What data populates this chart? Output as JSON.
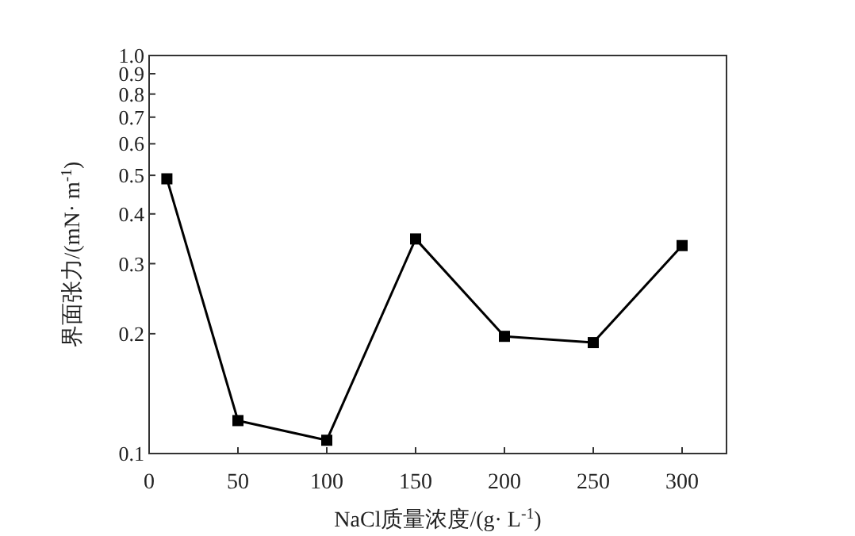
{
  "chart_data": {
    "type": "line",
    "xlabel": "NaCl质量浓度/(g· L$^{-1}$)",
    "ylabel": "界面张力/(mN· m$^{-1}$)",
    "x": [
      10,
      50,
      100,
      150,
      200,
      250,
      300
    ],
    "series": [
      {
        "color": "#000000",
        "values": [
          0.49,
          0.121,
          0.108,
          0.346,
          0.197,
          0.19,
          0.333
        ]
      }
    ],
    "xlim": [
      0,
      325
    ],
    "xticks": [
      0,
      50,
      100,
      150,
      200,
      250,
      300
    ],
    "ylim": [
      0.1,
      1.0
    ],
    "log": "y",
    "yticks": [
      {
        "value": 0.1,
        "label": "0.1"
      },
      {
        "value": 0.2,
        "label": "0.2"
      },
      {
        "value": 0.3,
        "label": "0.3"
      },
      {
        "value": 0.4,
        "label": "0.4"
      },
      {
        "value": 0.5,
        "label": "0.5"
      },
      {
        "value": 0.6,
        "label": "0.6"
      },
      {
        "value": 0.7,
        "label": "0.7"
      },
      {
        "value": 0.8,
        "label": "0.8"
      },
      {
        "value": 0.9,
        "label": "0.9"
      },
      {
        "value": 1.0,
        "label": "1.0"
      }
    ],
    "marker": "square",
    "line_style": "solid",
    "grid": false
  }
}
